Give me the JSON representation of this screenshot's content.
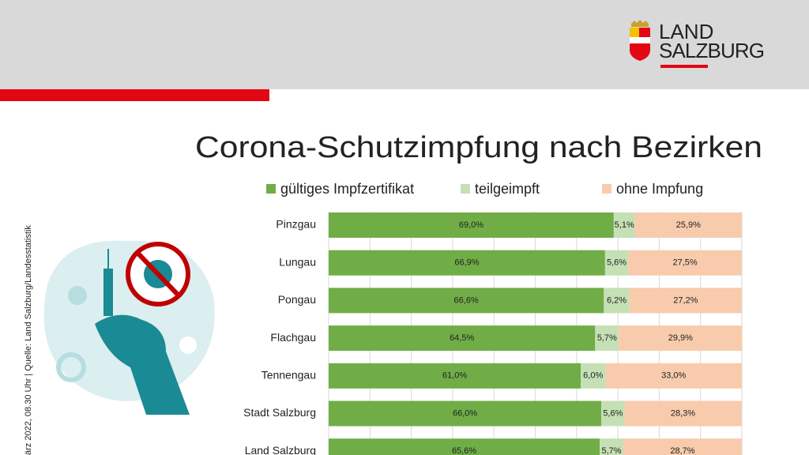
{
  "header": {
    "logo_line1": "LAND",
    "logo_line2": "SALZBURG"
  },
  "footnote": "ärz 2022, 08.30 Uhr | Quelle: Land Salzburg/Landesstatistik",
  "chart_data": {
    "type": "stacked-bar-horizontal",
    "title": "Corona-Schutzimpfung nach Bezirken",
    "categories": [
      "Pinzgau",
      "Lungau",
      "Pongau",
      "Flachgau",
      "Tennengau",
      "Stadt Salzburg",
      "Land Salzburg"
    ],
    "series": [
      {
        "name": "gültiges Impfzertifikat",
        "color": "#70ad47",
        "values": [
          69.0,
          66.9,
          66.6,
          64.5,
          61.0,
          66.0,
          65.6
        ],
        "value_labels": [
          "69,0%",
          "66,9%",
          "66,6%",
          "64,5%",
          "61,0%",
          "66,0%",
          "65,6%"
        ]
      },
      {
        "name": "teilgeimpft",
        "color": "#c5e0b4",
        "values": [
          5.1,
          5.6,
          6.2,
          5.7,
          6.0,
          5.6,
          5.7
        ],
        "value_labels": [
          "5,1%",
          "5,6%",
          "6,2%",
          "5,7%",
          "6,0%",
          "5,6%",
          "5,7%"
        ]
      },
      {
        "name": "ohne Impfung",
        "color": "#f8cbad",
        "values": [
          25.9,
          27.5,
          27.2,
          29.9,
          33.0,
          28.3,
          28.7
        ],
        "value_labels": [
          "25,9%",
          "27,5%",
          "27,2%",
          "29,9%",
          "33,0%",
          "28,3%",
          "28,7%"
        ]
      }
    ],
    "xlim": [
      0,
      100
    ],
    "xticks": [
      0,
      10,
      20,
      30,
      40,
      50,
      60,
      70,
      80,
      90,
      100
    ],
    "grid": true
  }
}
